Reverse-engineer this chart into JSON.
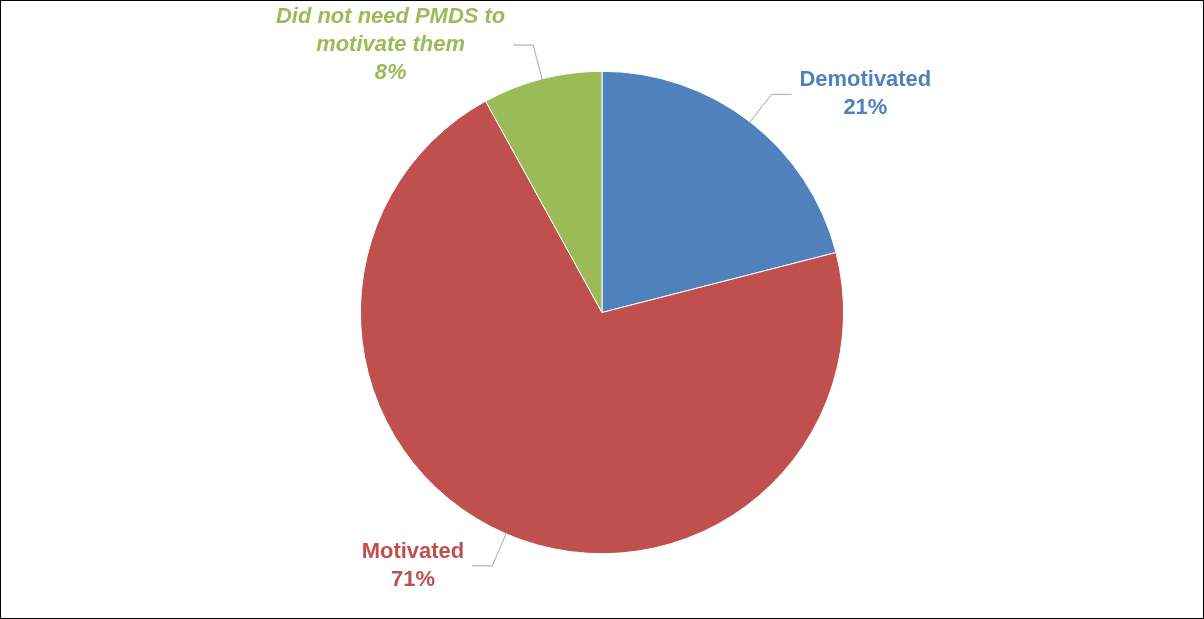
{
  "chart_data": {
    "type": "pie",
    "categories": [
      "Demotivated",
      "Motivated",
      "Did not need PMDS to motivate them"
    ],
    "values": [
      21,
      71,
      8
    ],
    "colors": [
      "#4f81bd",
      "#c0504d",
      "#9bbb59"
    ],
    "value_labels": [
      "21%",
      "71%",
      "8%"
    ],
    "legend": false
  }
}
